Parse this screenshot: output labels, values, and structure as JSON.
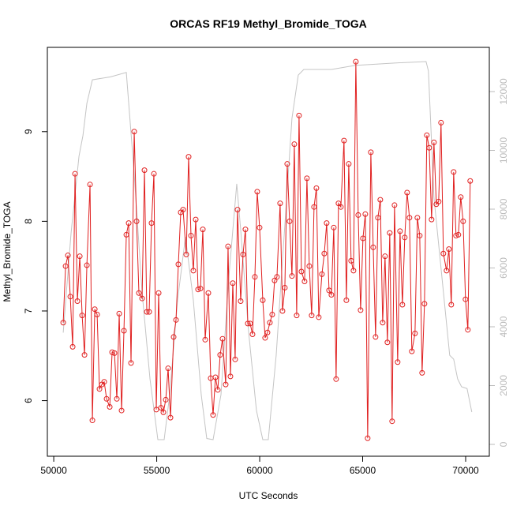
{
  "chart_data": {
    "type": "line",
    "title": "ORCAS RF19 Methyl_Bromide_TOGA",
    "xlabel": "UTC Seconds",
    "ylabel": "Methyl_Bromide_TOGA",
    "xlim": [
      49690,
      71150
    ],
    "ylim": [
      5.38,
      9.94
    ],
    "y2lim": [
      -403,
      13503
    ],
    "xticks": [
      50000,
      55000,
      60000,
      65000,
      70000
    ],
    "yticks": [
      6,
      7,
      8,
      9
    ],
    "y2ticks": [
      0,
      2000,
      4000,
      6000,
      8000,
      10000,
      12000
    ],
    "series": [
      {
        "color": "#e02020",
        "x": [
          50460,
          50575,
          50689,
          50804,
          50919,
          51034,
          51149,
          51264,
          51379,
          51494,
          51609,
          51762,
          51877,
          51992,
          52107,
          52221,
          52336,
          52451,
          52566,
          52719,
          52834,
          52949,
          53064,
          53179,
          53294,
          53409,
          53524,
          53639,
          53753,
          53907,
          54022,
          54136,
          54290,
          54405,
          54519,
          54634,
          54749,
          54864,
          54979,
          55094,
          55209,
          55324,
          55439,
          55554,
          55668,
          55822,
          55937,
          56051,
          56166,
          56281,
          56434,
          56549,
          56664,
          56779,
          56894,
          57009,
          57124,
          57239,
          57354,
          57507,
          57622,
          57737,
          57852,
          57966,
          58081,
          58196,
          58349,
          58464,
          58579,
          58694,
          58809,
          58924,
          59077,
          59192,
          59307,
          59422,
          59537,
          59652,
          59767,
          59881,
          59996,
          60150,
          60264,
          60379,
          60494,
          60609,
          60724,
          60839,
          60992,
          61107,
          61222,
          61337,
          61452,
          61567,
          61682,
          61796,
          61911,
          62026,
          62179,
          62294,
          62409,
          62524,
          62639,
          62754,
          62869,
          63022,
          63137,
          63252,
          63367,
          63482,
          63597,
          63711,
          63826,
          63941,
          64094,
          64209,
          64324,
          64439,
          64554,
          64669,
          64784,
          64899,
          65014,
          65129,
          65243,
          65397,
          65512,
          65626,
          65741,
          65856,
          65971,
          66086,
          66201,
          66316,
          66431,
          66546,
          66699,
          66814,
          66929,
          67044,
          67158,
          67273,
          67388,
          67541,
          67656,
          67771,
          67886,
          68001,
          68116,
          68231,
          68346,
          68461,
          68576,
          68690,
          68805,
          68920,
          69073,
          69188,
          69303,
          69418,
          69533,
          69648,
          69763,
          69878,
          69993,
          70108,
          70222
        ],
        "values": [
          6.87,
          7.5,
          7.62,
          7.16,
          6.6,
          8.53,
          7.11,
          7.61,
          6.95,
          6.51,
          7.51,
          8.41,
          5.78,
          7.02,
          6.96,
          6.13,
          6.18,
          6.21,
          6.02,
          5.93,
          6.54,
          6.53,
          6.02,
          6.97,
          5.89,
          6.78,
          7.85,
          7.98,
          6.42,
          9.0,
          8.0,
          7.2,
          7.14,
          8.57,
          6.99,
          6.99,
          7.98,
          8.53,
          5.9,
          7.2,
          5.92,
          5.87,
          6.01,
          6.36,
          5.81,
          6.71,
          6.9,
          7.52,
          8.1,
          8.13,
          7.63,
          8.72,
          7.84,
          7.45,
          8.02,
          7.24,
          7.25,
          7.91,
          6.68,
          7.2,
          6.25,
          5.84,
          6.26,
          6.12,
          6.51,
          6.69,
          6.18,
          7.72,
          6.27,
          7.31,
          6.46,
          8.13,
          7.11,
          7.63,
          7.91,
          6.86,
          6.86,
          6.74,
          7.38,
          8.33,
          7.93,
          7.12,
          6.7,
          6.76,
          6.87,
          6.96,
          7.34,
          7.38,
          8.2,
          7.0,
          7.26,
          8.64,
          8.0,
          7.39,
          8.86,
          6.95,
          9.18,
          7.44,
          7.33,
          8.48,
          7.5,
          6.95,
          8.16,
          8.37,
          6.93,
          7.41,
          7.64,
          7.98,
          7.23,
          7.18,
          7.93,
          6.24,
          8.2,
          8.16,
          8.9,
          7.12,
          8.64,
          7.56,
          7.45,
          9.78,
          8.07,
          7.01,
          7.81,
          8.08,
          5.58,
          8.77,
          7.71,
          6.71,
          8.04,
          8.24,
          6.87,
          7.61,
          6.65,
          7.87,
          5.77,
          8.18,
          6.43,
          7.89,
          7.07,
          7.82,
          8.32,
          8.04,
          6.55,
          6.75,
          8.04,
          7.84,
          6.31,
          7.08,
          8.96,
          8.82,
          8.02,
          8.88,
          8.19,
          8.22,
          9.1,
          7.64,
          7.45,
          7.69,
          7.07,
          8.55,
          7.84,
          7.85,
          8.27,
          8.0,
          7.13,
          6.79,
          8.45
        ]
      },
      {
        "color": "#c4c4c4",
        "axis": "y2",
        "x": [
          50460,
          50843,
          51226,
          51417,
          51609,
          51877,
          52758,
          53524,
          53907,
          54290,
          54673,
          55056,
          55362,
          55630,
          56013,
          56396,
          56779,
          57162,
          57430,
          57737,
          58120,
          58503,
          58886,
          59077,
          59460,
          59843,
          60150,
          60418,
          60801,
          61184,
          61567,
          61873,
          62141,
          63482,
          64631,
          66546,
          68078,
          68193,
          68461,
          68844,
          69226,
          69418,
          69610,
          69801,
          70069,
          70299
        ],
        "values": [
          3800,
          7200,
          9800,
          10500,
          11600,
          12400,
          12500,
          12650,
          9200,
          5180,
          2230,
          160,
          160,
          1690,
          4900,
          7060,
          4900,
          1690,
          200,
          160,
          1690,
          5700,
          8860,
          7300,
          3840,
          1150,
          160,
          160,
          3030,
          7060,
          11090,
          12560,
          12750,
          12750,
          12890,
          12970,
          13020,
          12700,
          8400,
          5720,
          3030,
          2900,
          2230,
          1960,
          1900,
          1100
        ]
      }
    ]
  }
}
